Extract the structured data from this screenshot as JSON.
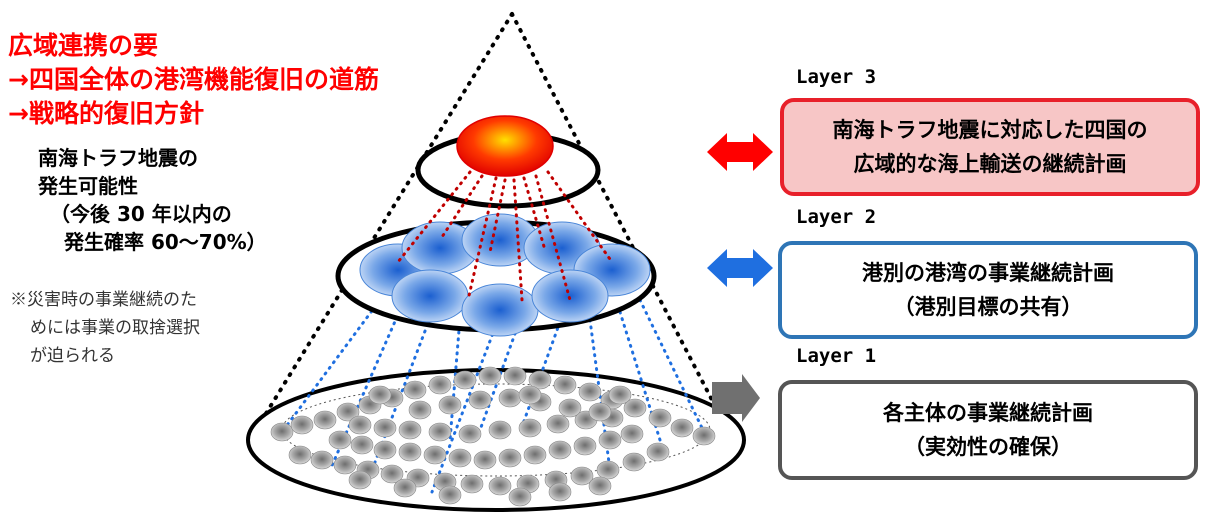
{
  "left_text": {
    "heading_lines": [
      "広域連携の要",
      "→四国全体の港湾機能復旧の道筋",
      "→戦略的復旧方針"
    ],
    "sub_lines": [
      "南海トラフ地震の",
      "発生可能性",
      "（今後 30 年以内の",
      "発生確率 60～70%）"
    ],
    "note_lines": [
      "※災害時の事業継続のた",
      "めには事業の取捨選択",
      "が迫られる"
    ]
  },
  "layers": [
    {
      "label": "Layer 3",
      "lines": [
        "南海トラフ地震に対応した四国の",
        "広域的な海上輸送の継続計画"
      ],
      "border_color": "#e8202a",
      "fill_color": "#f7c6c6",
      "arrow_color": "#ff0000"
    },
    {
      "label": "Layer 2",
      "lines": [
        "港別の港湾の事業継続計画",
        "（港別目標の共有）"
      ],
      "border_color": "#2e75b6",
      "fill_color": "#ffffff",
      "arrow_color": "#1f6fe0"
    },
    {
      "label": "Layer 1",
      "lines": [
        "各主体の事業継続計画",
        "（実効性の確保）"
      ],
      "border_color": "#555555",
      "fill_color": "#ffffff",
      "arrow_color": "#707070"
    }
  ]
}
